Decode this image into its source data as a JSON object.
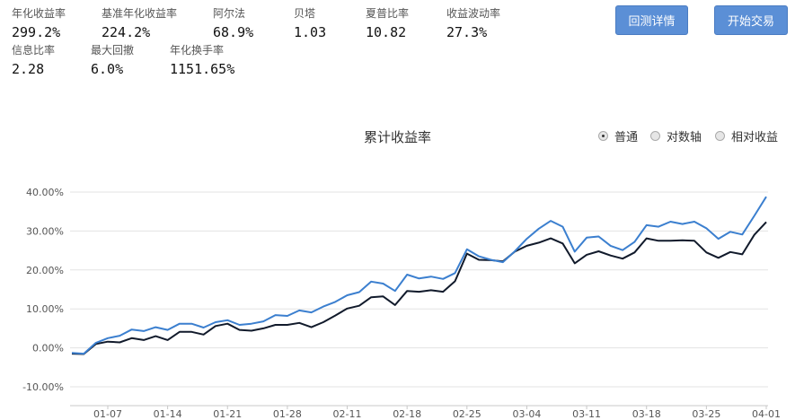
{
  "metrics": [
    {
      "label": "年化收益率",
      "value": "299.2%"
    },
    {
      "label": "基准年化收益率",
      "value": "224.2%"
    },
    {
      "label": "阿尔法",
      "value": "68.9%"
    },
    {
      "label": "贝塔",
      "value": "1.03"
    },
    {
      "label": "夏普比率",
      "value": "10.82"
    },
    {
      "label": "收益波动率",
      "value": "27.3%"
    },
    {
      "label": "信息比率",
      "value": "2.28"
    },
    {
      "label": "最大回撤",
      "value": "6.0%"
    },
    {
      "label": "年化换手率",
      "value": "1151.65%"
    }
  ],
  "buttons": {
    "backtest_detail": "回测详情",
    "start_trading": "开始交易"
  },
  "chart_options": [
    {
      "label": "普通",
      "selected": true
    },
    {
      "label": "对数轴",
      "selected": false
    },
    {
      "label": "相对收益",
      "selected": false
    }
  ],
  "chart_data": {
    "type": "line",
    "title": "累计收益率",
    "ylim": [
      -10,
      40
    ],
    "yticks": [
      "-10.00%",
      "0.00%",
      "10.00%",
      "20.00%",
      "30.00%",
      "40.00%"
    ],
    "ytick_values": [
      -10,
      0,
      10,
      20,
      30,
      40
    ],
    "xticks": [
      "01-07",
      "01-14",
      "01-21",
      "01-28",
      "02-11",
      "02-18",
      "02-25",
      "03-04",
      "03-11",
      "03-18",
      "03-25",
      "04-01"
    ],
    "xtick_indices": [
      3,
      8,
      13,
      18,
      23,
      28,
      33,
      38,
      43,
      48,
      53,
      58
    ],
    "grid": true,
    "colors": {
      "strategy": "#3b7fcf",
      "benchmark": "#111a2b"
    },
    "series": [
      {
        "key": "strategy",
        "values": [
          -1.3,
          -1.5,
          1.3,
          2.5,
          3.1,
          4.7,
          4.3,
          5.3,
          4.6,
          6.2,
          6.2,
          5.2,
          6.6,
          7.1,
          5.9,
          6.2,
          6.8,
          8.4,
          8.2,
          9.6,
          9.1,
          10.6,
          11.8,
          13.5,
          14.3,
          17.0,
          16.5,
          14.6,
          18.8,
          17.8,
          18.3,
          17.7,
          19.2,
          25.3,
          23.5,
          22.6,
          22.0,
          24.8,
          28.0,
          30.6,
          32.6,
          31.1,
          24.7,
          28.3,
          28.6,
          26.2,
          25.1,
          27.2,
          31.5,
          31.1,
          32.4,
          31.8,
          32.4,
          30.7,
          28.0,
          29.8,
          29.1,
          33.9,
          38.8
        ]
      },
      {
        "key": "benchmark",
        "values": [
          -1.5,
          -1.6,
          1.0,
          1.6,
          1.4,
          2.5,
          2.0,
          3.0,
          2.0,
          4.1,
          4.1,
          3.4,
          5.6,
          6.2,
          4.6,
          4.4,
          5.0,
          5.9,
          5.9,
          6.4,
          5.3,
          6.6,
          8.3,
          10.1,
          10.8,
          13.0,
          13.2,
          11.0,
          14.6,
          14.4,
          14.8,
          14.4,
          17.1,
          24.2,
          22.6,
          22.5,
          22.2,
          24.7,
          26.2,
          27.0,
          28.1,
          26.8,
          21.7,
          23.9,
          24.8,
          23.7,
          22.9,
          24.5,
          28.1,
          27.5,
          27.5,
          27.6,
          27.5,
          24.5,
          23.1,
          24.6,
          24.0,
          29.0,
          32.3
        ]
      }
    ]
  }
}
